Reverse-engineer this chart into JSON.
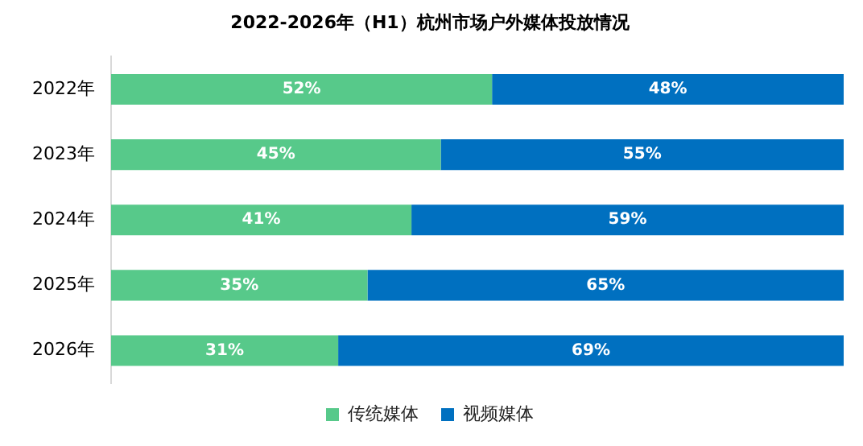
{
  "chart_data": {
    "type": "bar",
    "orientation": "horizontal",
    "stacked": true,
    "title": "2022-2026年（H1）杭州市场户外媒体投放情况",
    "categories": [
      "2022年",
      "2023年",
      "2024年",
      "2025年",
      "2026年"
    ],
    "series": [
      {
        "name": "传统媒体",
        "color": "#57c98a",
        "values": [
          52,
          45,
          41,
          35,
          31
        ],
        "value_labels": [
          "52%",
          "45%",
          "41%",
          "35%",
          "31%"
        ]
      },
      {
        "name": "视频媒体",
        "color": "#0070c0",
        "values": [
          48,
          55,
          59,
          65,
          69
        ],
        "value_labels": [
          "48%",
          "55%",
          "59%",
          "65%",
          "69%"
        ]
      }
    ],
    "xlim": [
      0,
      100
    ],
    "tick_labels": "y",
    "grid": false,
    "legend": "bottom"
  }
}
